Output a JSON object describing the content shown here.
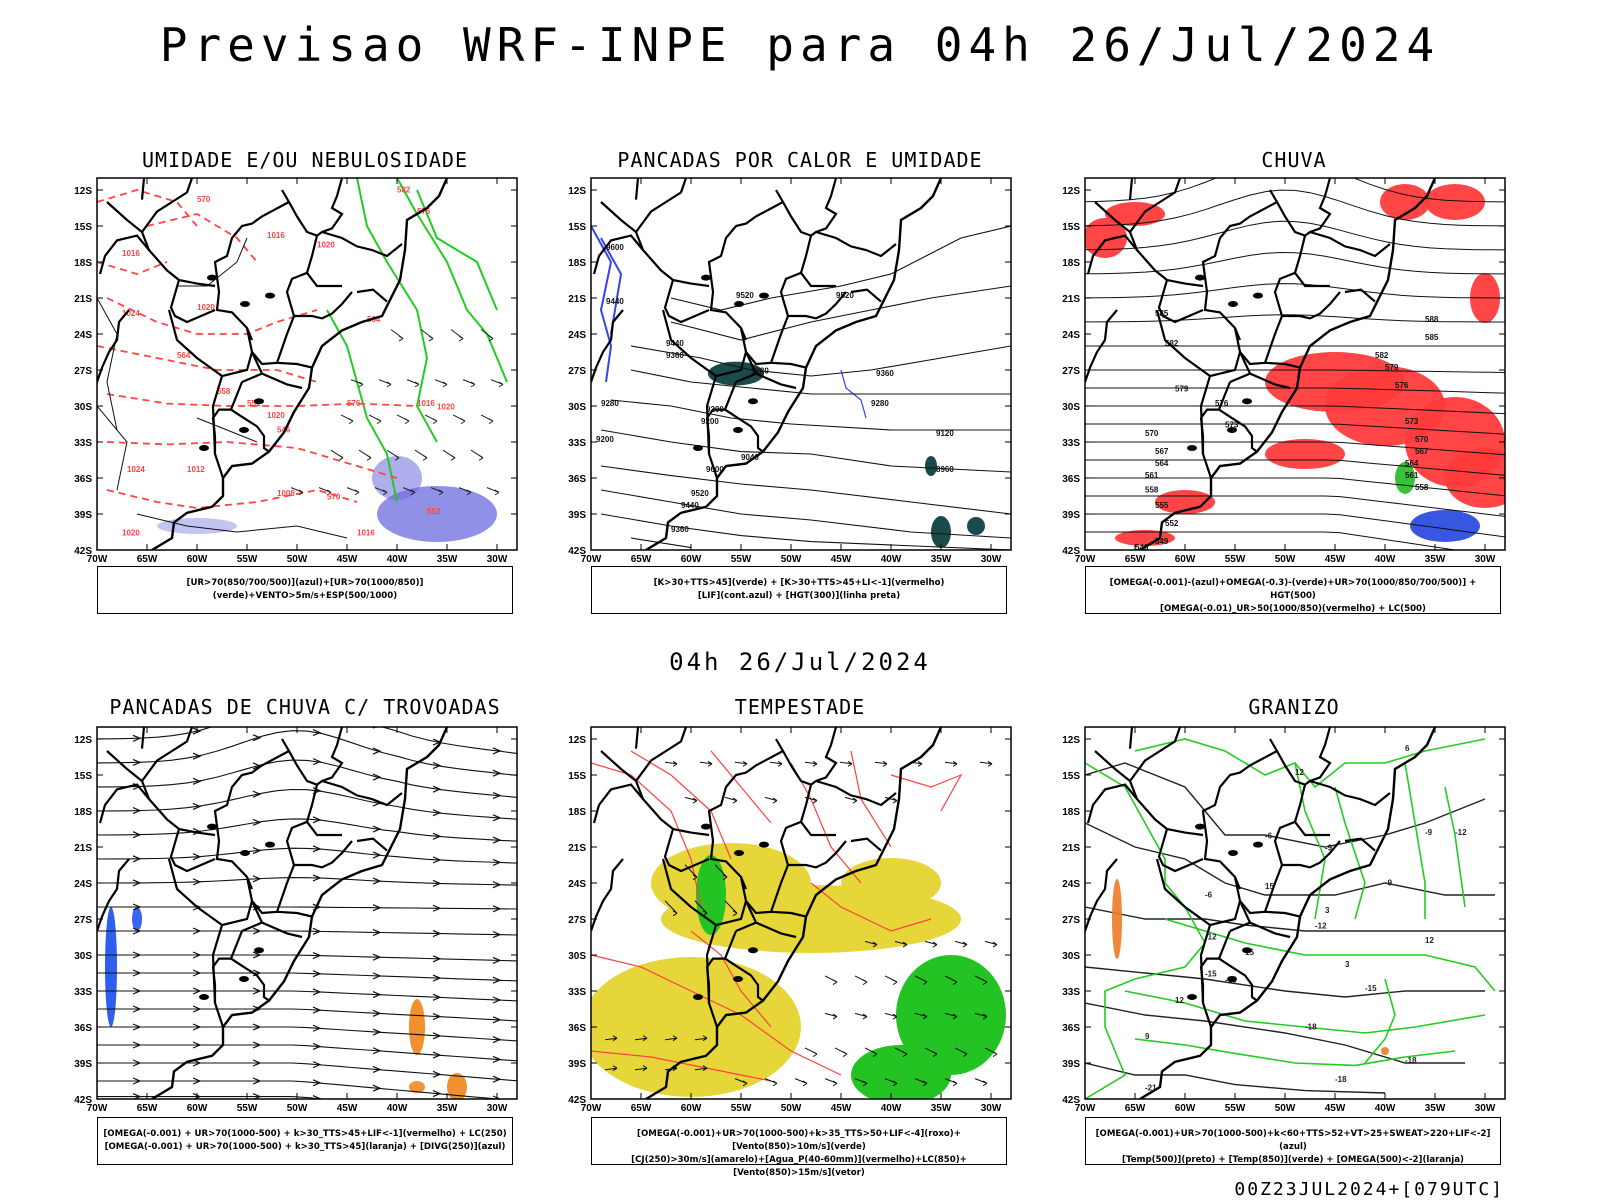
{
  "header": {
    "title": "Previsao WRF-INPE  para 04h 26/Jul/2024"
  },
  "mid_label": "04h 26/Jul/2024",
  "footer": "00Z23JUL2024+[079UTC]",
  "axes": {
    "lat_ticks": [
      "12S",
      "15S",
      "18S",
      "21S",
      "24S",
      "27S",
      "30S",
      "33S",
      "36S",
      "39S",
      "42S"
    ],
    "lon_ticks": [
      "70W",
      "65W",
      "60W",
      "55W",
      "50W",
      "45W",
      "40W",
      "35W",
      "30W"
    ]
  },
  "chart_data": [
    {
      "type": "map",
      "title": "UMIDADE E/OU NEBULOSIDADE",
      "legend": [
        "[UR>70(850/700/500)](azul)+[UR>70(1000/850)](verde)+VENTO>5m/s+ESP(500/1000)"
      ],
      "contour_labels": [
        "1016",
        "1016",
        "1020",
        "1020",
        "1024",
        "1012",
        "1008",
        "1016",
        "1020",
        "1016",
        "1020",
        "576",
        "570",
        "564",
        "558",
        "552",
        "546",
        "570",
        "576",
        "582",
        "564",
        "552",
        "1024",
        "1020"
      ],
      "colors": {
        "blue": "#6b6bdf",
        "green": "#22cc22",
        "red": "#ff4444"
      }
    },
    {
      "type": "map",
      "title": "PANCADAS POR CALOR E UMIDADE",
      "legend": [
        "[K>30+TTS>45](verde) + [K>30+TTS>45+LI<-1](vermelho)",
        "[LIF](cont.azul) + [HGT(300)](linha preta)"
      ],
      "contour_labels": [
        "9600",
        "9520",
        "9520",
        "9440",
        "9440",
        "9360",
        "9360",
        "9280",
        "9280",
        "9200",
        "9200",
        "9120",
        "9040",
        "8960",
        "9600",
        "9520",
        "9440",
        "9360",
        "9280",
        "9200"
      ],
      "colors": {
        "blue": "#3344ee",
        "teal": "#1b4a4a"
      }
    },
    {
      "type": "map",
      "title": "CHUVA",
      "legend": [
        "[OMEGA(-0.001)-(azul)+OMEGA(-0.3)-(verde)+UR>70(1000/850/700/500)] + HGT(500)",
        "[OMEGA(-0.01)_UR>50(1000/850)(vermelho) + LC(500)"
      ],
      "contour_labels": [
        "585",
        "582",
        "579",
        "576",
        "573",
        "570",
        "567",
        "564",
        "561",
        "558",
        "555",
        "552",
        "549",
        "546",
        "582",
        "579",
        "576",
        "573",
        "570",
        "567",
        "564",
        "561",
        "558",
        "588",
        "585"
      ],
      "colors": {
        "red": "#ff3b3b",
        "blue": "#2244dd",
        "green": "#22bb22"
      }
    },
    {
      "type": "map",
      "title": "PANCADAS DE CHUVA C/ TROVOADAS",
      "legend": [
        "[OMEGA(-0.001) + UR>70(1000-500) + k>30_TTS>45+LIF<-1](vermelho) + LC(250)",
        "[OMEGA(-0.001) + UR>70(1000-500) + k>30_TTS>45](laranja) + [DIVG(250)](azul)"
      ],
      "contour_labels": [],
      "colors": {
        "blue": "#2255ee",
        "orange": "#f08a24"
      }
    },
    {
      "type": "map",
      "title": "TEMPESTADE",
      "legend": [
        "[OMEGA(-0.001)+UR>70(1000-500)+k>35_TTS>50+LIF<-4](roxo)+[Vento(850)>10m/s](verde)",
        "[CJ(250)>30m/s](amarelo)+[Agua_P(40-60mm)](vermelho)+LC(850)+[Vento(850)>15m/s](vetor)"
      ],
      "contour_labels": [],
      "colors": {
        "yellow": "#e6d63a",
        "green": "#22c322",
        "red": "#ff4040"
      }
    },
    {
      "type": "map",
      "title": "GRANIZO",
      "legend": [
        "[OMEGA(-0.001)+UR>70(1000-500)+k<60+TTS>52+VT>25+SWEAT>220+LIF<-2](azul)",
        "[Temp(500)](preto) + [Temp(850)](verde) + [OMEGA(500)<-2](laranja)"
      ],
      "contour_labels": [
        "-6",
        "-9",
        "-6",
        "-9",
        "-12",
        "-12",
        "-15",
        "-18",
        "-18",
        "-18",
        "-21",
        "-15",
        "-12",
        "-9",
        "12",
        "15",
        "12",
        "15",
        "12",
        "9",
        "6",
        "3",
        "3",
        "-15"
      ],
      "colors": {
        "black": "#222222",
        "green": "#22cc22",
        "orange": "#f07a24"
      }
    }
  ]
}
